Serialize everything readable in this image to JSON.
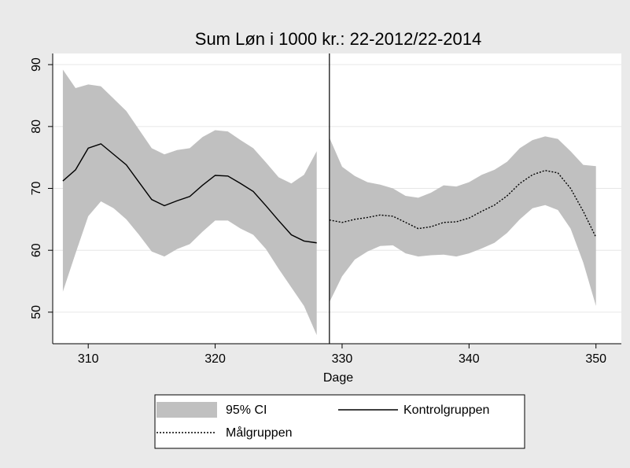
{
  "chart_data": {
    "type": "line",
    "title": "Sum Løn i 1000 kr.: 22-2012/22-2014",
    "xlabel": "Dage",
    "xlim": [
      307.2,
      352
    ],
    "ylim": [
      44.9,
      91.8
    ],
    "xticks": [
      310,
      320,
      330,
      340,
      350
    ],
    "yticks": [
      50,
      60,
      70,
      80,
      90
    ],
    "grid": true,
    "vline": 329,
    "band_name": "95% CI",
    "band_color": "#c0c0c0",
    "bands": [
      {
        "x": [
          308,
          309,
          310,
          311,
          312,
          313,
          314,
          315,
          316,
          317,
          318,
          319,
          320,
          321,
          322,
          323,
          324,
          325,
          326,
          327,
          328
        ],
        "lower": [
          53.3,
          59.5,
          65.5,
          67.9,
          66.8,
          65,
          62.5,
          59.8,
          59,
          60.2,
          61,
          63,
          64.8,
          64.8,
          63.5,
          62.5,
          60.2,
          57,
          54,
          51,
          46.3
        ],
        "upper": [
          89.2,
          86.2,
          86.8,
          86.5,
          84.5,
          82.5,
          79.5,
          76.5,
          75.5,
          76.2,
          76.5,
          78.3,
          79.4,
          79.2,
          77.8,
          76.5,
          74.2,
          71.8,
          70.8,
          72.2,
          76
        ]
      },
      {
        "x": [
          329,
          330,
          331,
          332,
          333,
          334,
          335,
          336,
          337,
          338,
          339,
          340,
          341,
          342,
          343,
          344,
          345,
          346,
          347,
          348,
          349,
          350
        ],
        "lower": [
          51.6,
          55.8,
          58.5,
          59.8,
          60.7,
          60.8,
          59.5,
          59,
          59.2,
          59.3,
          59,
          59.5,
          60.3,
          61.2,
          62.8,
          65,
          66.8,
          67.3,
          66.5,
          63.5,
          58,
          51
        ],
        "upper": [
          78.2,
          73.5,
          72,
          71,
          70.6,
          70,
          68.8,
          68.5,
          69.3,
          70.5,
          70.3,
          71,
          72.2,
          73,
          74.3,
          76.5,
          77.8,
          78.4,
          78,
          76,
          73.8,
          73.6
        ]
      }
    ],
    "series": [
      {
        "name": "Kontrolgruppen",
        "color": "#000000",
        "dash": "solid",
        "x": [
          308,
          309,
          310,
          311,
          312,
          313,
          314,
          315,
          316,
          317,
          318,
          319,
          320,
          321,
          322,
          323,
          324,
          325,
          326,
          327,
          328
        ],
        "values": [
          71.2,
          73,
          76.5,
          77.2,
          75.5,
          73.8,
          71,
          68.2,
          67.2,
          68,
          68.7,
          70.5,
          72.1,
          72,
          70.8,
          69.5,
          67.2,
          64.8,
          62.5,
          61.5,
          61.2
        ]
      },
      {
        "name": "Målgruppen",
        "color": "#000000",
        "dash": "dotted",
        "x": [
          329,
          330,
          331,
          332,
          333,
          334,
          335,
          336,
          337,
          338,
          339,
          340,
          341,
          342,
          343,
          344,
          345,
          346,
          347,
          348,
          349,
          350
        ],
        "values": [
          64.9,
          64.5,
          65,
          65.3,
          65.7,
          65.5,
          64.5,
          63.5,
          63.8,
          64.5,
          64.6,
          65.2,
          66.3,
          67.3,
          68.8,
          70.8,
          72.2,
          72.9,
          72.5,
          70,
          66.3,
          62.1
        ]
      }
    ]
  }
}
